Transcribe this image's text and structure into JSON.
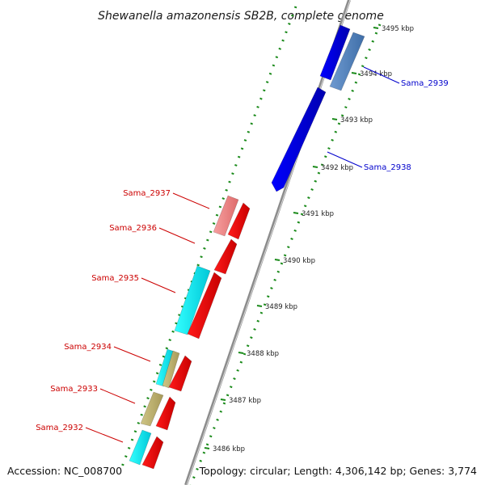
{
  "title": "Shewanella amazonensis SB2B, complete genome",
  "footer": {
    "accession": "Accession: NC_008700",
    "summary": "Topology: circular; Length: 4,306,142 bp; Genes: 3,774"
  },
  "colors": {
    "backbone": "#8c8c8c",
    "tick_dots": "#1a8a1a",
    "forward_gene": "#0000ee",
    "reverse_gene": "#ff0000",
    "label_forward": "#0000cc",
    "label_reverse": "#cc0000"
  },
  "ticks": [
    {
      "label": "3486 kbp"
    },
    {
      "label": "3487 kbp"
    },
    {
      "label": "3488 kbp"
    },
    {
      "label": "3489 kbp"
    },
    {
      "label": "3490 kbp"
    },
    {
      "label": "3491 kbp"
    },
    {
      "label": "3492 kbp"
    },
    {
      "label": "3493 kbp"
    },
    {
      "label": "3494 kbp"
    },
    {
      "label": "3495 kbp"
    }
  ],
  "labels": [
    {
      "text": "Sama_2939",
      "strand": "forward"
    },
    {
      "text": "Sama_2938",
      "strand": "forward"
    },
    {
      "text": "Sama_2937",
      "strand": "reverse"
    },
    {
      "text": "Sama_2936",
      "strand": "reverse"
    },
    {
      "text": "Sama_2935",
      "strand": "reverse"
    },
    {
      "text": "Sama_2934",
      "strand": "reverse"
    },
    {
      "text": "Sama_2933",
      "strand": "reverse"
    },
    {
      "text": "Sama_2932",
      "strand": "reverse"
    }
  ]
}
